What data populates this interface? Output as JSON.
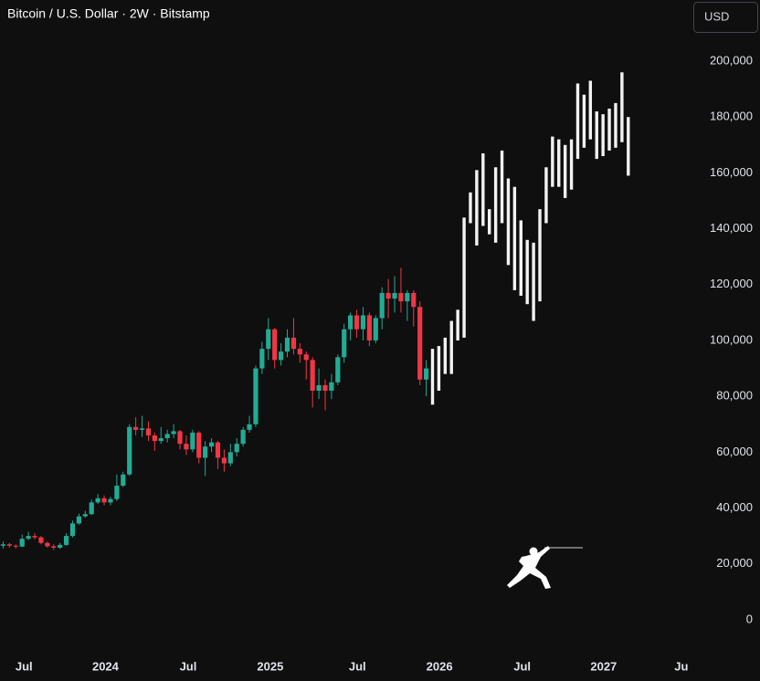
{
  "chart_data": {
    "type": "candlestick",
    "title": "Bitcoin / U.S. Dollar · 2W · Bitstamp",
    "currency": "USD",
    "up_color": "#22ab94",
    "down_color": "#f23645",
    "xlim": [
      -0.5,
      108
    ],
    "xticks": [
      {
        "value": 3.3,
        "label": "Jul"
      },
      {
        "value": 16.2,
        "label": "2024"
      },
      {
        "value": 29.3,
        "label": "Jul"
      },
      {
        "value": 42.3,
        "label": "2025"
      },
      {
        "value": 56.1,
        "label": "Jul"
      },
      {
        "value": 69.1,
        "label": "2026"
      },
      {
        "value": 82.2,
        "label": "Jul"
      },
      {
        "value": 95.1,
        "label": "2027"
      },
      {
        "value": 107.4,
        "label": "Ju"
      }
    ],
    "ylim": [
      -6900,
      221900
    ],
    "yticks": [
      0,
      {
        "value": 20000,
        "label": "20,000"
      },
      {
        "value": 40000,
        "label": "40,000"
      },
      {
        "value": 60000,
        "label": "60,000"
      },
      {
        "value": 80000,
        "label": "80,000"
      },
      {
        "value": 100000,
        "label": "100,000"
      },
      {
        "value": 120000,
        "label": "120,000"
      },
      {
        "value": 140000,
        "label": "140,000"
      },
      {
        "value": 160000,
        "label": "160,000"
      },
      {
        "value": 180000,
        "label": "180,000"
      },
      {
        "value": 200000,
        "label": "200,000"
      }
    ],
    "candles": {
      "open": [
        26500,
        27000,
        26500,
        26200,
        29000,
        30000,
        29500,
        27500,
        26300,
        25800,
        26800,
        30000,
        34500,
        37000,
        37800,
        42000,
        43500,
        42000,
        43200,
        48000,
        52000,
        69000,
        68000,
        68500,
        66000,
        64000,
        65000,
        66500,
        67500,
        63000,
        61000,
        67000,
        58000,
        62000,
        63500,
        58000,
        56000,
        60000,
        63000,
        68000,
        70000,
        90000,
        97000,
        104000,
        93000,
        96000,
        101000,
        97000,
        95000,
        93000,
        82000,
        84000,
        82000,
        85000,
        94000,
        104000,
        109000,
        104000,
        109000,
        100000,
        108000,
        117000,
        115000,
        117000,
        114000,
        117000,
        112000,
        86000
      ],
      "close": [
        27000,
        26500,
        26200,
        29000,
        30000,
        29500,
        27500,
        26300,
        25800,
        26800,
        30000,
        34500,
        37000,
        37800,
        42000,
        43500,
        42000,
        43200,
        48000,
        52000,
        69000,
        68000,
        68500,
        66000,
        64000,
        65000,
        66500,
        67500,
        63000,
        61000,
        67000,
        58000,
        62000,
        63500,
        58000,
        56000,
        60000,
        63000,
        68000,
        70000,
        90000,
        97000,
        104000,
        93000,
        96000,
        101000,
        97000,
        95000,
        93000,
        82000,
        84000,
        82000,
        85000,
        94000,
        104000,
        109000,
        104000,
        109000,
        100000,
        108000,
        117000,
        115000,
        117000,
        114000,
        117000,
        112000,
        86000,
        90000
      ],
      "high": [
        28000,
        27500,
        27000,
        30500,
        31500,
        31000,
        30000,
        28000,
        27000,
        27500,
        31000,
        35500,
        38000,
        39000,
        43000,
        45000,
        44500,
        44000,
        52000,
        53000,
        70000,
        72500,
        73000,
        71000,
        67000,
        69000,
        68000,
        70000,
        68000,
        66000,
        68000,
        67500,
        64000,
        65000,
        64000,
        61000,
        63000,
        65000,
        69000,
        73000,
        91000,
        99500,
        108000,
        104500,
        99000,
        104000,
        108000,
        99000,
        96000,
        94000,
        90000,
        86000,
        88000,
        95000,
        106000,
        110000,
        111000,
        112000,
        110000,
        109000,
        119000,
        122000,
        123000,
        126000,
        118000,
        118000,
        114000,
        93000
      ],
      "low": [
        25500,
        25800,
        25500,
        26000,
        28500,
        28800,
        27000,
        25800,
        25000,
        25300,
        26500,
        29500,
        34000,
        36500,
        37500,
        41500,
        41000,
        41000,
        42500,
        47500,
        51500,
        66000,
        65500,
        64000,
        60500,
        63000,
        63500,
        65000,
        61000,
        59000,
        60000,
        56000,
        51500,
        60000,
        54000,
        53000,
        55000,
        58500,
        62000,
        67000,
        69000,
        88000,
        93000,
        90000,
        91000,
        94000,
        95000,
        92000,
        86000,
        76000,
        79000,
        75000,
        79000,
        84000,
        92000,
        100000,
        101000,
        100000,
        98000,
        99000,
        104000,
        108000,
        110000,
        110000,
        107000,
        105000,
        84000,
        80000
      ]
    },
    "projection": {
      "color": "#f2f2f2",
      "low": [
        77000,
        82000,
        88000,
        88000,
        100000,
        101000,
        142000,
        134000,
        141000,
        138000,
        135000,
        142000,
        127000,
        118000,
        116000,
        113000,
        107000,
        114000,
        142000,
        155000,
        155000,
        151000,
        154000,
        165000,
        169000,
        172000,
        165000,
        166000,
        168000,
        169000,
        171000,
        159000
      ],
      "high": [
        97000,
        98000,
        101000,
        107000,
        111000,
        144000,
        153000,
        161000,
        167000,
        147000,
        162000,
        168000,
        158000,
        155000,
        143000,
        136000,
        135000,
        147000,
        162000,
        173000,
        172000,
        170000,
        172000,
        192000,
        188000,
        193000,
        182000,
        181000,
        183000,
        185000,
        196000,
        180000
      ]
    }
  }
}
